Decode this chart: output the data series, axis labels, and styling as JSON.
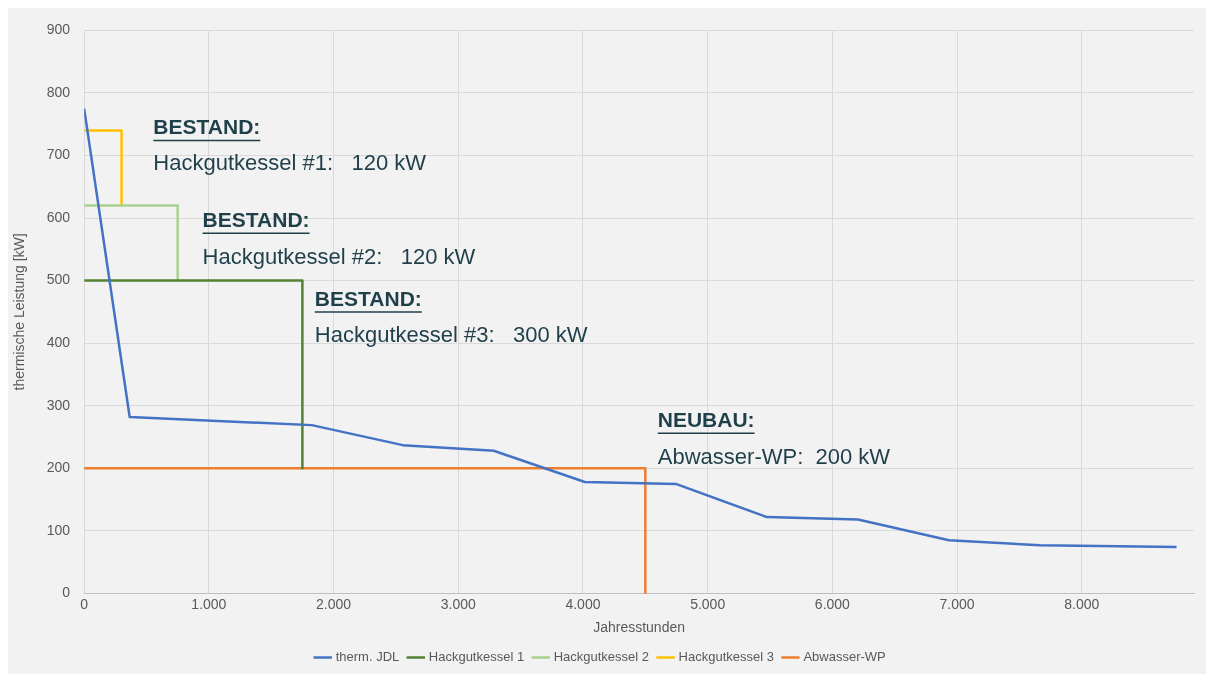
{
  "chart_data": {
    "type": "line",
    "xlabel": "Jahresstunden",
    "ylabel": "thermische Leistung [kW]",
    "xlim": [
      0,
      8900
    ],
    "ylim": [
      0,
      900
    ],
    "xticks": [
      0,
      {
        "value": 1000,
        "label": "1.000"
      },
      {
        "value": 2000,
        "label": "2.000"
      },
      {
        "value": 3000,
        "label": "3.000"
      },
      {
        "value": 4000,
        "label": "4.000"
      },
      {
        "value": 5000,
        "label": "5.000"
      },
      {
        "value": 6000,
        "label": "6.000"
      },
      {
        "value": 7000,
        "label": "7.000"
      },
      {
        "value": 8000,
        "label": "8.000"
      }
    ],
    "yticks": [
      0,
      100,
      200,
      300,
      400,
      500,
      600,
      700,
      800,
      900
    ],
    "grid": true,
    "legend": "bottom",
    "marker": "none",
    "line_style": "solid",
    "series": [
      {
        "name": "therm. JDL",
        "color": "#4472c4",
        "x": [
          0,
          365,
          1825,
          2555,
          3285,
          4015,
          4745,
          5475,
          6205,
          6935,
          7665,
          8760
        ],
        "values": [
          775,
          282,
          269,
          237,
          228,
          178,
          175,
          122,
          118,
          85,
          77,
          74
        ]
      },
      {
        "name": "Hackgutkessel 1",
        "color": "#548235",
        "type": "step",
        "x": [
          0,
          1750,
          1750
        ],
        "values": [
          500,
          500,
          200
        ]
      },
      {
        "name": "Hackgutkessel 2",
        "color": "#a9d18e",
        "type": "step",
        "x": [
          0,
          750,
          750
        ],
        "values": [
          620,
          620,
          500
        ]
      },
      {
        "name": "Hackgutkessel 3",
        "color": "#ffc000",
        "type": "step",
        "x": [
          0,
          300,
          300
        ],
        "values": [
          740,
          740,
          620
        ]
      },
      {
        "name": "Abwasser-WP",
        "color": "#ed7d31",
        "type": "step",
        "x": [
          0,
          4500,
          4500
        ],
        "values": [
          200,
          200,
          0
        ]
      }
    ],
    "annotations": [
      "BESTAND:",
      "Hackgutkessel #1:   120 kW",
      "BESTAND:",
      "Hackgutkessel #2:   120 kW",
      "BESTAND:",
      "Hackgutkessel #3:   300 kW",
      "NEUBAU:",
      "Abwasser-WP:  200 kW"
    ]
  }
}
